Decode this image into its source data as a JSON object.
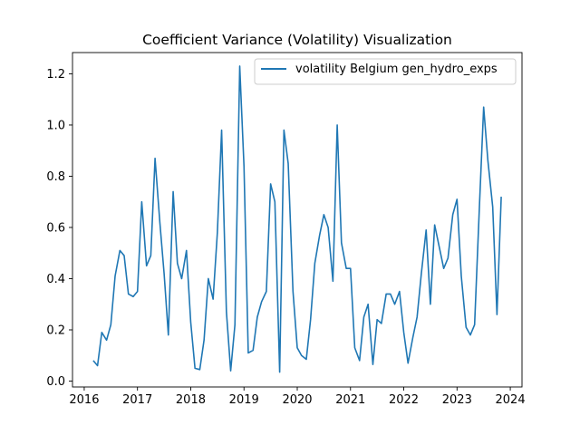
{
  "chart_data": {
    "type": "line",
    "title": "Coefficient Variance (Volatility) Visualization",
    "xlabel": "",
    "ylabel": "",
    "xlim": [
      2015.78,
      2024.22
    ],
    "ylim": [
      -0.023,
      1.283
    ],
    "x_ticks": [
      2016,
      2017,
      2018,
      2019,
      2020,
      2021,
      2022,
      2023,
      2024
    ],
    "x_tick_labels": [
      "2016",
      "2017",
      "2018",
      "2019",
      "2020",
      "2021",
      "2022",
      "2023",
      "2024"
    ],
    "y_ticks": [
      0.0,
      0.2,
      0.4,
      0.6,
      0.8,
      1.0,
      1.2
    ],
    "y_tick_labels": [
      "0.0",
      "0.2",
      "0.4",
      "0.6",
      "0.8",
      "1.0",
      "1.2"
    ],
    "legend_position": "top-right",
    "grid": false,
    "series": [
      {
        "name": "volatility Belgium gen_hydro_exps",
        "color": "#1f77b4",
        "x": [
          2016.17,
          2016.25,
          2016.33,
          2016.42,
          2016.5,
          2016.58,
          2016.67,
          2016.75,
          2016.83,
          2016.92,
          2017.0,
          2017.08,
          2017.17,
          2017.25,
          2017.33,
          2017.42,
          2017.5,
          2017.58,
          2017.67,
          2017.75,
          2017.83,
          2017.92,
          2018.0,
          2018.08,
          2018.17,
          2018.25,
          2018.33,
          2018.42,
          2018.5,
          2018.58,
          2018.67,
          2018.75,
          2018.83,
          2018.92,
          2019.0,
          2019.08,
          2019.17,
          2019.25,
          2019.33,
          2019.42,
          2019.5,
          2019.58,
          2019.67,
          2019.75,
          2019.83,
          2019.92,
          2020.0,
          2020.08,
          2020.17,
          2020.25,
          2020.33,
          2020.42,
          2020.5,
          2020.58,
          2020.67,
          2020.75,
          2020.83,
          2020.92,
          2021.0,
          2021.08,
          2021.17,
          2021.25,
          2021.33,
          2021.42,
          2021.5,
          2021.58,
          2021.67,
          2021.75,
          2021.83,
          2021.92,
          2022.0,
          2022.08,
          2022.17,
          2022.25,
          2022.33,
          2022.42,
          2022.5,
          2022.58,
          2022.67,
          2022.75,
          2022.83,
          2022.92,
          2023.0,
          2023.08,
          2023.17,
          2023.25,
          2023.33,
          2023.42,
          2023.5,
          2023.58,
          2023.67,
          2023.75,
          2023.83
        ],
        "y": [
          0.08,
          0.06,
          0.19,
          0.16,
          0.22,
          0.41,
          0.51,
          0.49,
          0.34,
          0.33,
          0.35,
          0.7,
          0.45,
          0.49,
          0.87,
          0.62,
          0.42,
          0.18,
          0.74,
          0.46,
          0.4,
          0.51,
          0.23,
          0.05,
          0.045,
          0.16,
          0.4,
          0.32,
          0.58,
          0.98,
          0.27,
          0.04,
          0.22,
          1.23,
          0.84,
          0.11,
          0.12,
          0.25,
          0.31,
          0.35,
          0.77,
          0.7,
          0.035,
          0.98,
          0.85,
          0.35,
          0.13,
          0.1,
          0.085,
          0.24,
          0.46,
          0.57,
          0.65,
          0.6,
          0.39,
          1.0,
          0.54,
          0.44,
          0.44,
          0.13,
          0.08,
          0.25,
          0.3,
          0.065,
          0.24,
          0.225,
          0.34,
          0.34,
          0.3,
          0.35,
          0.19,
          0.07,
          0.17,
          0.25,
          0.42,
          0.59,
          0.3,
          0.61,
          0.52,
          0.44,
          0.48,
          0.65,
          0.71,
          0.41,
          0.21,
          0.18,
          0.22,
          0.68,
          1.07,
          0.86,
          0.68,
          0.26,
          0.72
        ]
      }
    ]
  }
}
